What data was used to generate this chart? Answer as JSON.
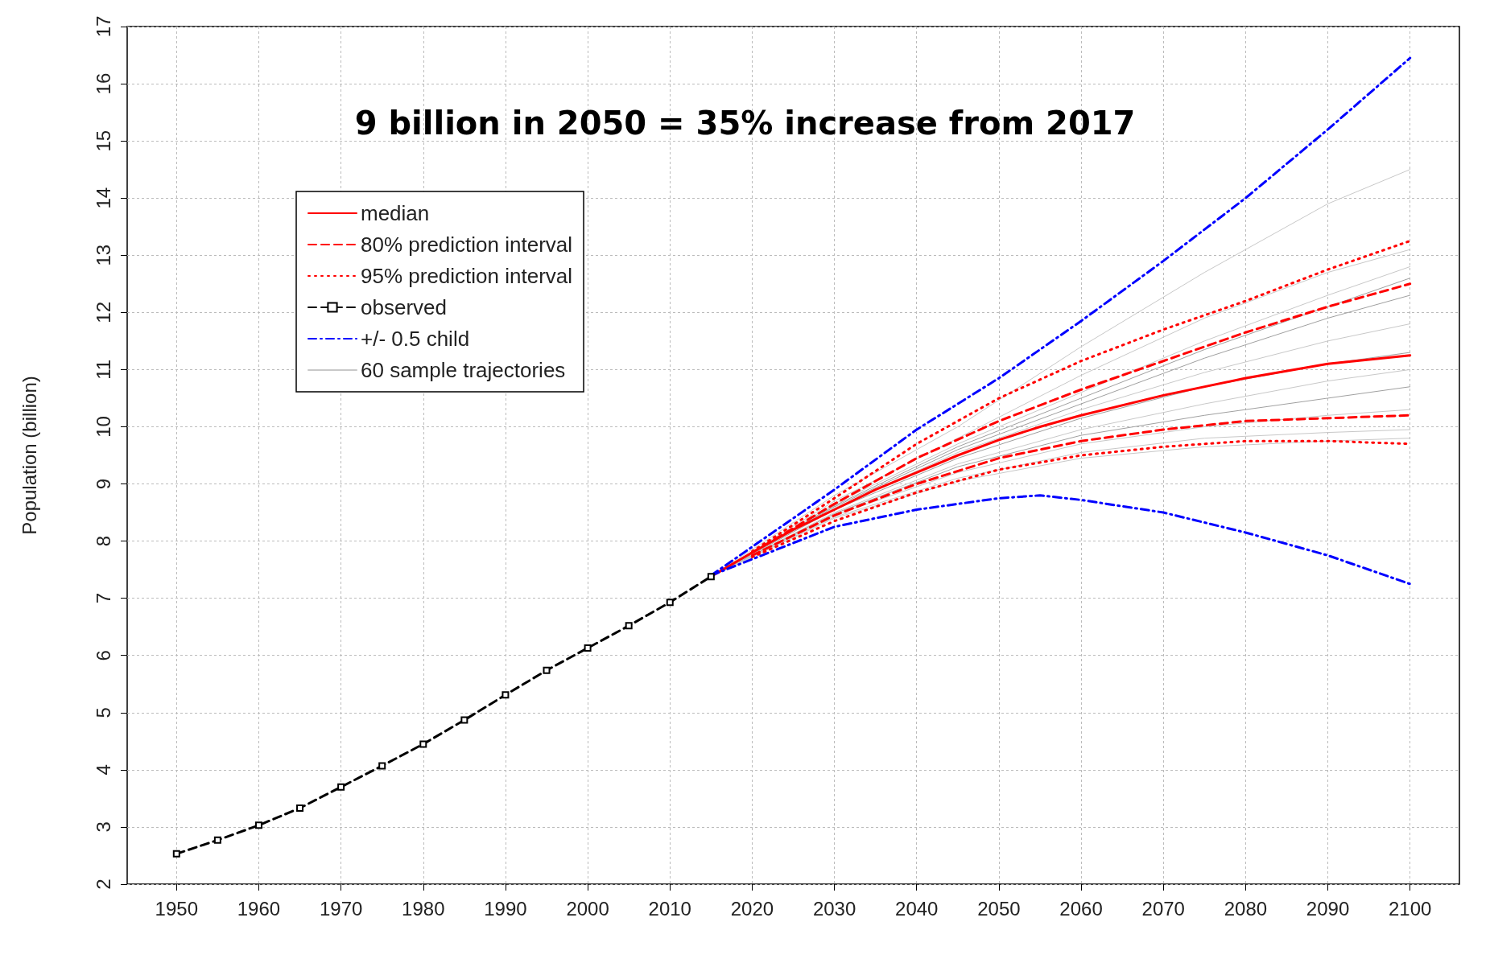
{
  "chart_data": {
    "type": "line",
    "title": "9 billion in 2050 = 35% increase from 2017",
    "ylabel": "Population (billion)",
    "xlim": [
      1944,
      2106
    ],
    "xticks": [
      1950,
      1960,
      1970,
      1980,
      1990,
      2000,
      2010,
      2020,
      2030,
      2040,
      2050,
      2060,
      2070,
      2080,
      2090,
      2100
    ],
    "ylim": [
      2,
      17
    ],
    "yticks": [
      2,
      3,
      4,
      5,
      6,
      7,
      8,
      9,
      10,
      11,
      12,
      13,
      14,
      15,
      16,
      17
    ],
    "grid": true,
    "legend": "top left",
    "marker": "none",
    "series": [
      {
        "name": "median",
        "color": "#ff0000",
        "line_style": "solid",
        "x": [
          2015,
          2020,
          2025,
          2030,
          2035,
          2040,
          2045,
          2050,
          2055,
          2060,
          2070,
          2080,
          2090,
          2100
        ],
        "values": [
          7.38,
          7.8,
          8.2,
          8.55,
          8.9,
          9.2,
          9.5,
          9.77,
          10.0,
          10.2,
          10.55,
          10.85,
          11.1,
          11.25
        ]
      },
      {
        "name": "80% prediction interval",
        "color": "#ff0000",
        "line_style": "dashed",
        "x": [
          2020,
          2030,
          2040,
          2050,
          2060,
          2070,
          2080,
          2090,
          2100
        ],
        "values": [
          7.8,
          8.65,
          9.45,
          10.1,
          10.65,
          11.15,
          11.65,
          12.1,
          12.5
        ]
      },
      {
        "name": "95% prediction interval",
        "color": "#ff0000",
        "line_style": "dotted",
        "x": [
          2020,
          2030,
          2040,
          2050,
          2060,
          2070,
          2080,
          2090,
          2100
        ],
        "values": [
          7.82,
          8.75,
          9.7,
          10.5,
          11.15,
          11.7,
          12.2,
          12.75,
          13.25
        ]
      },
      {
        "name": "observed",
        "color": "#000000",
        "line_style": "dashed",
        "marker": "square",
        "x": [
          1950,
          1955,
          1960,
          1965,
          1970,
          1975,
          1980,
          1985,
          1990,
          1995,
          2000,
          2005,
          2010,
          2015
        ],
        "values": [
          2.53,
          2.77,
          3.03,
          3.33,
          3.7,
          4.07,
          4.45,
          4.87,
          5.31,
          5.74,
          6.13,
          6.52,
          6.93,
          7.38
        ]
      },
      {
        "name": "+/- 0.5 child",
        "color": "#0000ff",
        "line_style": "dashdot",
        "x": [
          2015,
          2030,
          2040,
          2050,
          2060,
          2070,
          2080,
          2090,
          2100
        ],
        "values": [
          7.4,
          8.9,
          9.95,
          10.85,
          11.85,
          12.9,
          14.0,
          15.2,
          16.45
        ]
      },
      {
        "name": "60 sample trajectories",
        "color": "#c8c8c8",
        "line_style": "solid",
        "x": [
          2015,
          2030,
          2045,
          2060,
          2075,
          2090,
          2100
        ],
        "values": [
          7.38,
          8.8,
          10.0,
          11.4,
          12.7,
          13.9,
          14.5
        ]
      },
      {
        "color": "#ff0000",
        "line_style": "dashed",
        "x": [
          2020,
          2030,
          2040,
          2050,
          2060,
          2070,
          2080,
          2090,
          2100
        ],
        "values": [
          7.75,
          8.45,
          9.0,
          9.45,
          9.75,
          9.95,
          10.1,
          10.15,
          10.2
        ]
      },
      {
        "color": "#ff0000",
        "line_style": "dotted",
        "x": [
          2020,
          2030,
          2040,
          2050,
          2060,
          2070,
          2080,
          2090,
          2100
        ],
        "values": [
          7.72,
          8.35,
          8.85,
          9.25,
          9.5,
          9.65,
          9.75,
          9.75,
          9.7
        ]
      },
      {
        "color": "#0000ff",
        "line_style": "dashdot",
        "x": [
          2015,
          2030,
          2040,
          2050,
          2055,
          2060,
          2070,
          2080,
          2090,
          2100
        ],
        "values": [
          7.4,
          8.25,
          8.55,
          8.75,
          8.8,
          8.72,
          8.5,
          8.15,
          7.75,
          7.25
        ]
      },
      {
        "color": "#c8c8c8",
        "line_style": "solid",
        "x": [
          2015,
          2030,
          2045,
          2060,
          2075,
          2090,
          2100
        ],
        "values": [
          7.38,
          8.7,
          9.8,
          10.9,
          11.9,
          12.7,
          13.1
        ]
      },
      {
        "color": "#c8c8c8",
        "line_style": "solid",
        "x": [
          2015,
          2030,
          2045,
          2060,
          2075,
          2090,
          2100
        ],
        "values": [
          7.38,
          8.65,
          9.7,
          10.6,
          11.5,
          12.3,
          12.8
        ]
      },
      {
        "color": "#a0a0a0",
        "line_style": "solid",
        "x": [
          2015,
          2030,
          2045,
          2060,
          2075,
          2090,
          2100
        ],
        "values": [
          7.38,
          8.6,
          9.6,
          10.4,
          11.2,
          11.9,
          12.3
        ]
      },
      {
        "color": "#c8c8c8",
        "line_style": "solid",
        "x": [
          2015,
          2030,
          2045,
          2060,
          2075,
          2090,
          2100
        ],
        "values": [
          7.38,
          8.58,
          9.55,
          10.3,
          10.95,
          11.5,
          11.8
        ]
      },
      {
        "color": "#a0a0a0",
        "line_style": "solid",
        "x": [
          2015,
          2030,
          2045,
          2060,
          2075,
          2090,
          2100
        ],
        "values": [
          7.38,
          8.55,
          9.45,
          10.15,
          10.7,
          11.1,
          11.3
        ]
      },
      {
        "color": "#c8c8c8",
        "line_style": "solid",
        "x": [
          2015,
          2030,
          2045,
          2060,
          2075,
          2090,
          2100
        ],
        "values": [
          7.38,
          8.5,
          9.35,
          9.95,
          10.4,
          10.8,
          11.0
        ]
      },
      {
        "color": "#a0a0a0",
        "line_style": "solid",
        "x": [
          2015,
          2030,
          2045,
          2060,
          2075,
          2090,
          2100
        ],
        "values": [
          7.38,
          8.48,
          9.3,
          9.85,
          10.2,
          10.5,
          10.7
        ]
      },
      {
        "color": "#c8c8c8",
        "line_style": "solid",
        "x": [
          2015,
          2030,
          2045,
          2060,
          2075,
          2090,
          2100
        ],
        "values": [
          7.38,
          8.45,
          9.2,
          9.7,
          10.0,
          10.2,
          10.3
        ]
      },
      {
        "color": "#c8c8c8",
        "line_style": "solid",
        "x": [
          2015,
          2030,
          2045,
          2060,
          2075,
          2090,
          2100
        ],
        "values": [
          7.38,
          8.42,
          9.1,
          9.55,
          9.8,
          9.9,
          9.95
        ]
      },
      {
        "color": "#c8c8c8",
        "line_style": "solid",
        "x": [
          2015,
          2030,
          2045,
          2060,
          2075,
          2090,
          2100
        ],
        "values": [
          7.38,
          8.4,
          9.05,
          9.45,
          9.65,
          9.75,
          9.8
        ]
      },
      {
        "color": "#a0a0a0",
        "line_style": "solid",
        "x": [
          2015,
          2030,
          2045,
          2060,
          2075,
          2090,
          2100
        ],
        "values": [
          7.38,
          8.62,
          9.65,
          10.5,
          11.35,
          12.1,
          12.6
        ]
      }
    ]
  }
}
